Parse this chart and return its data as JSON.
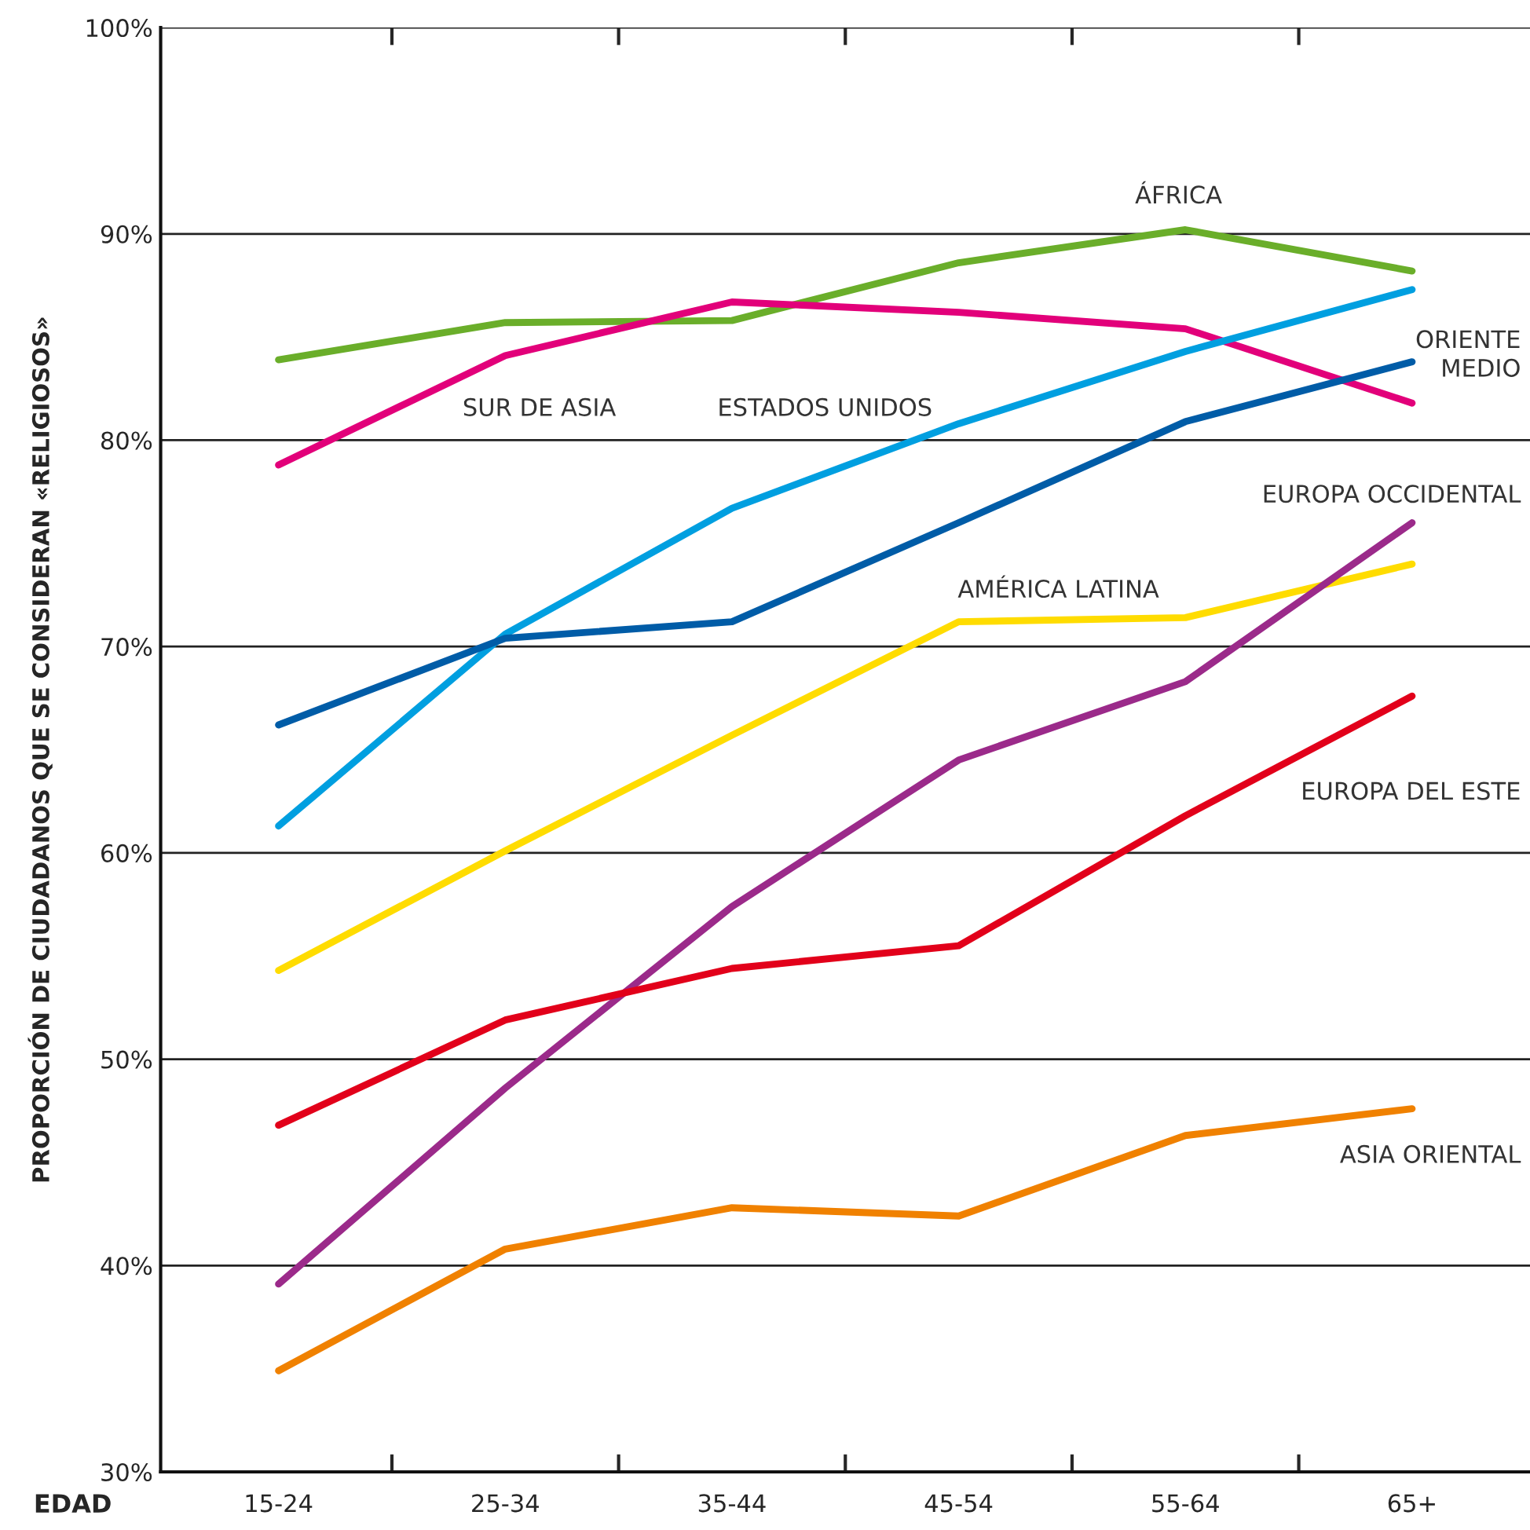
{
  "chart_data": {
    "type": "line",
    "xlabel": "EDAD",
    "ylabel": "PROPORCIÓN DE CIUDADANOS QUE SE CONSIDERAN «RELIGIOSOS»",
    "categories": [
      "15-24",
      "25-34",
      "35-44",
      "45-54",
      "55-64",
      "65+"
    ],
    "ylim": [
      30,
      100
    ],
    "yticks": [
      {
        "value": 30,
        "label": "30%"
      },
      {
        "value": 40,
        "label": "40%"
      },
      {
        "value": 50,
        "label": "50%"
      },
      {
        "value": 60,
        "label": "60%"
      },
      {
        "value": 70,
        "label": "70%"
      },
      {
        "value": 80,
        "label": "80%"
      },
      {
        "value": 90,
        "label": "90%"
      },
      {
        "value": 100,
        "label": "100%"
      }
    ],
    "grid": "y",
    "legend": false,
    "marker": "none",
    "line_style": "solid",
    "series": [
      {
        "name": "ÁFRICA",
        "color": "#6aae2a",
        "values": [
          83.9,
          85.7,
          85.8,
          88.6,
          90.2,
          88.2
        ]
      },
      {
        "name": "SUR DE ASIA",
        "color": "#e2007a",
        "values": [
          78.8,
          84.1,
          86.7,
          86.2,
          85.4,
          81.8
        ]
      },
      {
        "name": "ESTADOS UNIDOS",
        "color": "#009fe0",
        "values": [
          61.3,
          70.6,
          76.7,
          80.8,
          84.3,
          87.3
        ]
      },
      {
        "name": "ORIENTE\nMEDIO",
        "color": "#005ca7",
        "values": [
          66.2,
          70.4,
          71.2,
          76.0,
          80.9,
          83.8
        ]
      },
      {
        "name": "AMÉRICA LATINA",
        "color": "#ffdc00",
        "values": [
          54.3,
          60.1,
          65.7,
          71.2,
          71.4,
          74.0
        ]
      },
      {
        "name": "EUROPA OCCIDENTAL",
        "color": "#9b2a8a",
        "values": [
          39.1,
          48.6,
          57.4,
          64.5,
          68.3,
          76.0
        ]
      },
      {
        "name": "EUROPA DEL ESTE",
        "color": "#e2001a",
        "values": [
          46.8,
          51.9,
          54.4,
          55.5,
          61.8,
          67.6
        ]
      },
      {
        "name": "ASIA ORIENTAL",
        "color": "#f08100",
        "values": [
          34.9,
          40.8,
          42.8,
          42.4,
          46.3,
          47.6
        ]
      }
    ]
  }
}
